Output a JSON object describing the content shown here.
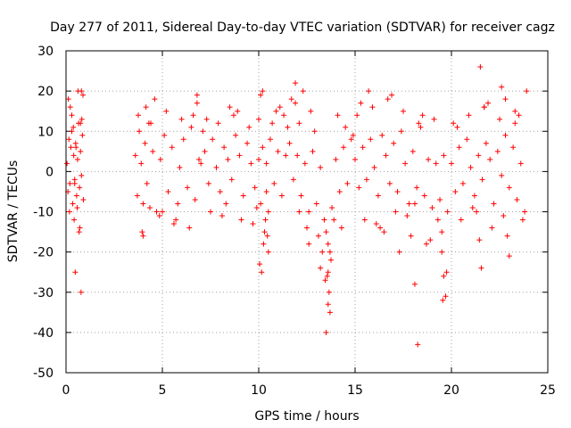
{
  "chart_data": {
    "type": "scatter",
    "title": "Day 277 of 2011, Sidereal Day-to-day VTEC variation (SDTVAR) for receiver cagz",
    "xlabel": "GPS time / hours",
    "ylabel": "SDTVAR / TECUs",
    "xlim": [
      0,
      25
    ],
    "ylim": [
      -50,
      30
    ],
    "xticks": [
      0,
      5,
      10,
      15,
      20,
      25
    ],
    "yticks": [
      -50,
      -40,
      -30,
      -20,
      -10,
      0,
      10,
      20,
      30
    ],
    "grid": true,
    "marker": "+",
    "color": "#ff0000",
    "series": [
      {
        "name": "SDTVAR",
        "x": [
          0.05,
          0.1,
          0.15,
          0.2,
          0.25,
          0.3,
          0.35,
          0.4,
          0.45,
          0.5,
          0.55,
          0.6,
          0.65,
          0.7,
          0.75,
          0.8,
          0.85,
          0.9,
          0.12,
          0.18,
          0.3,
          0.42,
          0.52,
          0.62,
          0.72,
          0.82,
          0.22,
          0.48,
          0.68,
          0.78,
          0.88,
          0.38,
          0.58,
          0.8,
          0.75,
          0.45,
          3.6,
          3.7,
          3.8,
          3.9,
          4.0,
          4.1,
          4.2,
          4.3,
          4.5,
          4.7,
          4.9,
          5.1,
          5.3,
          5.5,
          5.7,
          5.9,
          6.1,
          6.3,
          6.5,
          6.7,
          6.9,
          3.75,
          3.95,
          4.15,
          4.35,
          4.6,
          4.85,
          5.2,
          5.6,
          6.0,
          6.4,
          6.8,
          4.0,
          4.4,
          5.0,
          5.8,
          6.6,
          7.0,
          7.2,
          7.4,
          7.6,
          7.8,
          8.0,
          8.2,
          8.4,
          8.6,
          8.8,
          9.0,
          9.2,
          9.4,
          9.6,
          9.8,
          7.1,
          7.5,
          7.9,
          8.3,
          8.7,
          9.1,
          9.5,
          9.9,
          7.3,
          8.1,
          8.9,
          9.7,
          6.8,
          8.5,
          10.0,
          10.1,
          10.2,
          10.3,
          10.4,
          10.5,
          10.6,
          10.8,
          11.0,
          11.2,
          11.4,
          11.6,
          11.8,
          10.05,
          10.15,
          10.25,
          10.35,
          10.45,
          10.7,
          10.9,
          11.3,
          11.7,
          10.1,
          10.5,
          11.1,
          11.5,
          11.9,
          10.2,
          10.0,
          10.4,
          12.0,
          12.2,
          12.4,
          12.6,
          12.8,
          13.0,
          13.2,
          13.4,
          13.5,
          13.6,
          13.7,
          13.8,
          14.0,
          14.2,
          14.4,
          14.6,
          14.8,
          12.1,
          12.5,
          12.9,
          13.1,
          13.3,
          13.55,
          13.65,
          13.75,
          13.9,
          14.1,
          14.5,
          14.9,
          12.3,
          12.7,
          13.45,
          13.6,
          13.7,
          13.5,
          13.6,
          12.6,
          13.2,
          14.3,
          11.9,
          12.1,
          15.0,
          15.2,
          15.4,
          15.6,
          15.8,
          16.0,
          16.2,
          16.4,
          16.6,
          16.8,
          17.0,
          17.2,
          17.4,
          17.6,
          17.8,
          18.0,
          18.2,
          18.4,
          18.6,
          18.8,
          19.0,
          19.2,
          19.4,
          19.6,
          19.8,
          15.1,
          15.5,
          15.9,
          16.3,
          16.7,
          17.1,
          17.5,
          17.9,
          18.3,
          18.7,
          19.1,
          19.5,
          15.3,
          16.1,
          16.9,
          17.7,
          18.5,
          19.3,
          15.7,
          18.1,
          18.1,
          18.25,
          19.5,
          19.6,
          19.7,
          19.55,
          19.75,
          16.5,
          17.3,
          18.9,
          20.0,
          20.2,
          20.4,
          20.6,
          20.8,
          21.0,
          21.2,
          21.4,
          21.6,
          21.8,
          22.0,
          22.2,
          22.4,
          22.6,
          22.8,
          23.0,
          23.2,
          23.4,
          23.6,
          23.8,
          20.1,
          20.5,
          20.9,
          21.3,
          21.7,
          22.1,
          22.5,
          22.9,
          23.3,
          23.7,
          20.3,
          21.1,
          21.9,
          22.7,
          23.5,
          21.5,
          21.55,
          22.6,
          23.3,
          23.0,
          21.7,
          23.9,
          21.45,
          22.8
        ],
        "y": [
          2,
          -5,
          8,
          -3,
          6,
          10,
          -8,
          4,
          -2,
          7,
          -6,
          3,
          12,
          -4,
          5,
          -1,
          9,
          -7,
          18,
          -10,
          14,
          -12,
          6,
          20,
          -14,
          13,
          16,
          -25,
          -15,
          -30,
          19,
          11,
          -9,
          20,
          12,
          -3,
          4,
          -6,
          10,
          2,
          -8,
          7,
          -3,
          12,
          5,
          -10,
          3,
          9,
          -5,
          6,
          -12,
          1,
          8,
          -4,
          11,
          -7,
          3,
          14,
          -15,
          16,
          -9,
          18,
          -11,
          15,
          -13,
          13,
          -14,
          17,
          -16,
          12,
          -10,
          -8,
          14,
          2,
          5,
          -3,
          8,
          1,
          -5,
          6,
          3,
          -2,
          9,
          4,
          -6,
          7,
          2,
          -4,
          10,
          -10,
          12,
          -8,
          14,
          -12,
          11,
          -9,
          13,
          -11,
          15,
          -13,
          19,
          16,
          3,
          -8,
          6,
          -15,
          2,
          -20,
          8,
          -3,
          5,
          -6,
          4,
          7,
          -2,
          -23,
          -25,
          -18,
          -12,
          -16,
          12,
          15,
          14,
          18,
          19,
          -10,
          16,
          11,
          17,
          20,
          13,
          -5,
          4,
          -6,
          2,
          -10,
          5,
          -8,
          1,
          -12,
          -15,
          -18,
          -20,
          -9,
          3,
          -5,
          6,
          -3,
          8,
          12,
          -14,
          10,
          -16,
          -20,
          -26,
          -30,
          -22,
          -12,
          14,
          11,
          9,
          20,
          15,
          -27,
          -33,
          -35,
          -40,
          -25,
          -18,
          -24,
          -14,
          22,
          -10,
          3,
          -4,
          6,
          -2,
          8,
          1,
          -6,
          9,
          4,
          -3,
          7,
          -5,
          10,
          2,
          -8,
          5,
          -4,
          11,
          -6,
          3,
          -9,
          2,
          -7,
          4,
          -10,
          14,
          -12,
          16,
          -14,
          18,
          -10,
          15,
          -16,
          12,
          -18,
          13,
          -15,
          17,
          -13,
          19,
          -11,
          14,
          -12,
          20,
          -8,
          -28,
          -43,
          -20,
          -26,
          -31,
          -32,
          -25,
          -15,
          -20,
          -17,
          2,
          -5,
          6,
          -3,
          8,
          1,
          -6,
          4,
          -2,
          7,
          3,
          -8,
          5,
          -1,
          9,
          -4,
          6,
          -7,
          2,
          -10,
          12,
          -12,
          14,
          -10,
          16,
          -14,
          13,
          -16,
          15,
          -12,
          11,
          -9,
          17,
          -11,
          14,
          26,
          -24,
          21,
          12,
          -21,
          16,
          20,
          -17,
          18
        ]
      }
    ]
  }
}
